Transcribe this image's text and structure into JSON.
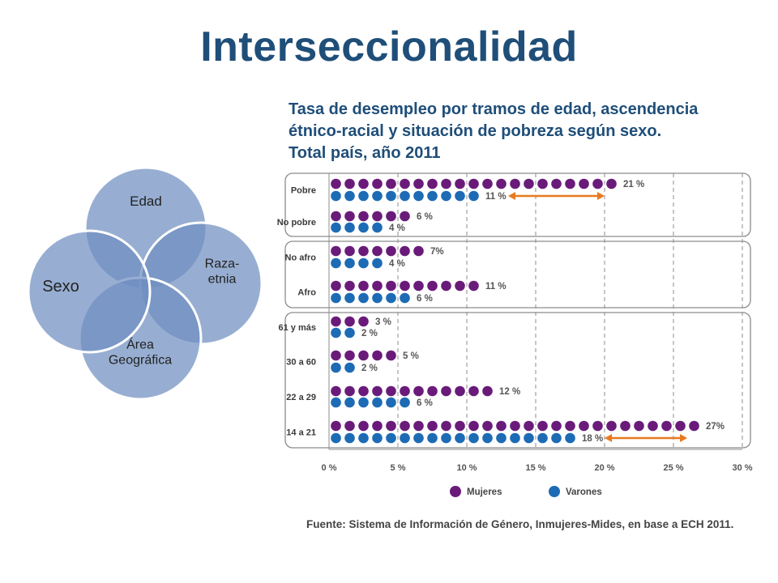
{
  "slide": {
    "title": "Interseccionalidad"
  },
  "venn": {
    "circles": [
      {
        "label": "Edad"
      },
      {
        "label": "Raza-\netnia"
      },
      {
        "label": "Área\nGeográfica"
      },
      {
        "label": "Sexo"
      }
    ],
    "color": "#6f8fc0",
    "stroke": "#ffffff"
  },
  "chart_data": {
    "type": "scatter",
    "title_lines": [
      "Tasa de desempleo por tramos de edad, ascendencia",
      "étnico-racial y situación de pobreza según sexo.",
      "Total país, año 2011"
    ],
    "xlim": [
      0,
      30
    ],
    "xticks": [
      0,
      5,
      10,
      15,
      20,
      25,
      30
    ],
    "tick_suffix": " %",
    "groups": [
      {
        "rows": [
          {
            "label": "Pobre",
            "mujeres": 21,
            "varones": 11,
            "mujeres_label": "21 %",
            "varones_label": "11 %"
          },
          {
            "label": "No pobre",
            "mujeres": 6,
            "varones": 4,
            "mujeres_label": "6 %",
            "varones_label": "4 %"
          }
        ]
      },
      {
        "rows": [
          {
            "label": "No afro",
            "mujeres": 7,
            "varones": 4,
            "mujeres_label": "7%",
            "varones_label": "4 %"
          },
          {
            "label": "Afro",
            "mujeres": 11,
            "varones": 6,
            "mujeres_label": "11 %",
            "varones_label": "6 %"
          }
        ]
      },
      {
        "rows": [
          {
            "label": "61 y más",
            "mujeres": 3,
            "varones": 2,
            "mujeres_label": "3 %",
            "varones_label": "2 %"
          },
          {
            "label": "30 a 60",
            "mujeres": 5,
            "varones": 2,
            "mujeres_label": "5 %",
            "varones_label": "2 %"
          },
          {
            "label": "22 a 29",
            "mujeres": 12,
            "varones": 6,
            "mujeres_label": "12 %",
            "varones_label": "6 %"
          },
          {
            "label": "14 a 21",
            "mujeres": 27,
            "varones": 18,
            "mujeres_label": "27%",
            "varones_label": "18 %"
          }
        ]
      }
    ],
    "gap_arrows": [
      {
        "row": "Pobre",
        "from": 13,
        "to": 20
      },
      {
        "row": "14 a 21",
        "from": 20,
        "to": 26
      }
    ],
    "series": [
      {
        "name": "Mujeres",
        "color": "#6a1b7a"
      },
      {
        "name": "Varones",
        "color": "#1d6bb5"
      }
    ],
    "arrow_color": "#e87a1e",
    "source": "Fuente: Sistema de Información de Género, Inmujeres-Mides, en base a ECH 2011."
  }
}
